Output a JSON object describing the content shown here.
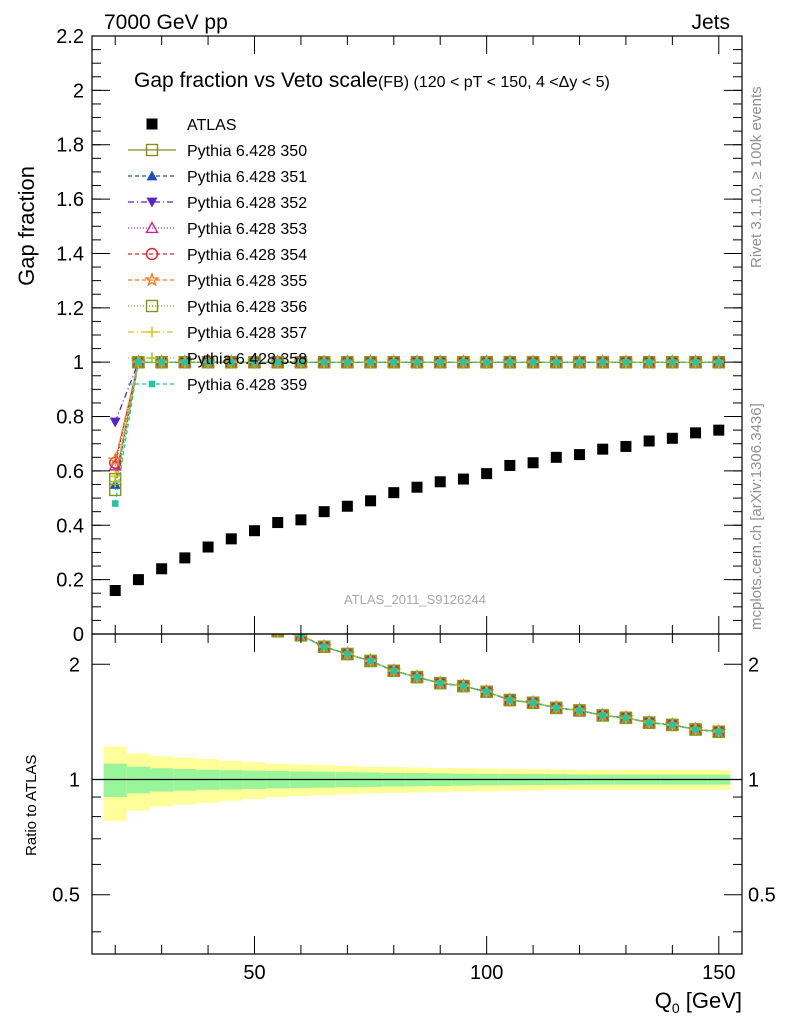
{
  "header": {
    "left": "7000 GeV pp",
    "right": "Jets"
  },
  "side_labels": {
    "rivet": "Rivet 3.1.10, ≥ 100k events",
    "mcplots": "mcplots.cern.ch [arXiv:1306.3436]"
  },
  "chart_data": {
    "type": "scatter",
    "title": "Gap fraction vs Veto scale",
    "subtitle": "(FB) (120 < pT < 150, 4 <Δy < 5)",
    "analysis": "ATLAS_2011_S9126244",
    "xlabel": "Q",
    "xlabel_sub": "0",
    "xlabel_unit": " [GeV]",
    "ylabel": "Gap fraction",
    "ratio_ylabel": "Ratio to ATLAS",
    "xlim": [
      15,
      155
    ],
    "ylim": [
      0,
      2.2
    ],
    "ratio_ylim": [
      0.35,
      2.4
    ],
    "x_ticks": [
      "50",
      "100",
      "150"
    ],
    "y_ticks": [
      "0",
      "0.2",
      "0.4",
      "0.6",
      "0.8",
      "1",
      "1.2",
      "1.4",
      "1.6",
      "1.8",
      "2",
      "2.2"
    ],
    "ratio_ticks": [
      "0.5",
      "1",
      "2"
    ],
    "x": [
      20,
      25,
      30,
      35,
      40,
      45,
      50,
      55,
      60,
      65,
      70,
      75,
      80,
      85,
      90,
      95,
      100,
      105,
      110,
      115,
      120,
      125,
      130,
      135,
      140,
      145,
      150
    ],
    "data": {
      "name": "ATLAS",
      "values": [
        0.16,
        0.2,
        0.24,
        0.28,
        0.32,
        0.35,
        0.38,
        0.41,
        0.42,
        0.45,
        0.47,
        0.49,
        0.52,
        0.54,
        0.56,
        0.57,
        0.59,
        0.62,
        0.63,
        0.65,
        0.66,
        0.68,
        0.69,
        0.71,
        0.72,
        0.74,
        0.75
      ],
      "band_inner": [
        0.1,
        0.08,
        0.07,
        0.065,
        0.06,
        0.058,
        0.055,
        0.052,
        0.05,
        0.048,
        0.045,
        0.043,
        0.041,
        0.04,
        0.038,
        0.036,
        0.035,
        0.034,
        0.033,
        0.032,
        0.031,
        0.03,
        0.03,
        0.03,
        0.03,
        0.03,
        0.03
      ],
      "band_outer": [
        0.22,
        0.17,
        0.15,
        0.14,
        0.13,
        0.12,
        0.11,
        0.1,
        0.095,
        0.09,
        0.085,
        0.08,
        0.078,
        0.075,
        0.072,
        0.07,
        0.068,
        0.066,
        0.064,
        0.062,
        0.06,
        0.06,
        0.06,
        0.06,
        0.06,
        0.06,
        0.06
      ]
    },
    "series": [
      {
        "name": "Pythia 6.428 350",
        "color": "#8a8a1e",
        "marker": "square-open",
        "dash": "",
        "first": 0.57
      },
      {
        "name": "Pythia 6.428 351",
        "color": "#1f4fbf",
        "marker": "triangle-up",
        "dash": "4,3",
        "first": 0.55
      },
      {
        "name": "Pythia 6.428 352",
        "color": "#5a22c8",
        "marker": "triangle-down",
        "dash": "6,3,1,3",
        "first": 0.78
      },
      {
        "name": "Pythia 6.428 353",
        "color": "#c8268e",
        "marker": "triangle-open",
        "dash": "1,2",
        "first": 0.62
      },
      {
        "name": "Pythia 6.428 354",
        "color": "#e0202a",
        "marker": "circle-open",
        "dash": "4,3",
        "first": 0.63
      },
      {
        "name": "Pythia 6.428 355",
        "color": "#f07820",
        "marker": "star-open",
        "dash": "4,3",
        "first": 0.64
      },
      {
        "name": "Pythia 6.428 356",
        "color": "#7a9a18",
        "marker": "square-open",
        "dash": "1,2",
        "first": 0.53
      },
      {
        "name": "Pythia 6.428 357",
        "color": "#d8c818",
        "marker": "cross",
        "dash": "6,3,1,3",
        "first": 0.58
      },
      {
        "name": "Pythia 6.428 358",
        "color": "#a0c830",
        "marker": "cross",
        "dash": "1,2",
        "first": 0.56
      },
      {
        "name": "Pythia 6.428 359",
        "color": "#20c8a0",
        "marker": "square-filled",
        "dash": "4,3",
        "first": 0.48
      }
    ],
    "mc_value": 1.0
  }
}
